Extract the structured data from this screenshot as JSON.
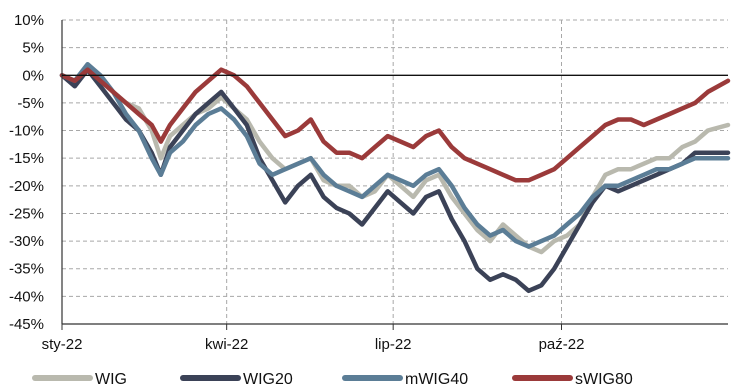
{
  "chart_data": {
    "type": "line",
    "title": "",
    "xlabel": "",
    "ylabel": "",
    "ylim": [
      -45,
      10
    ],
    "y_ticks": [
      "10%",
      "5%",
      "0%",
      "-5%",
      "-10%",
      "-15%",
      "-20%",
      "-25%",
      "-30%",
      "-35%",
      "-40%",
      "-45%"
    ],
    "y_tick_values": [
      10,
      5,
      0,
      -5,
      -10,
      -15,
      -20,
      -25,
      -30,
      -35,
      -40,
      -45
    ],
    "x_ticks": [
      "sty-22",
      "kwi-22",
      "lip-22",
      "paź-22"
    ],
    "x_tick_dates": [
      "2022-01-01",
      "2022-04-01",
      "2022-07-01",
      "2022-10-01"
    ],
    "x_range": [
      "2022-01-01",
      "2022-12-31"
    ],
    "grid": true,
    "legend_position": "bottom",
    "x": [
      "2022-01-01",
      "2022-01-08",
      "2022-01-15",
      "2022-01-22",
      "2022-01-29",
      "2022-02-05",
      "2022-02-12",
      "2022-02-19",
      "2022-02-24",
      "2022-03-01",
      "2022-03-08",
      "2022-03-15",
      "2022-03-22",
      "2022-03-29",
      "2022-04-05",
      "2022-04-12",
      "2022-04-19",
      "2022-04-26",
      "2022-05-03",
      "2022-05-10",
      "2022-05-17",
      "2022-05-24",
      "2022-05-31",
      "2022-06-07",
      "2022-06-14",
      "2022-06-21",
      "2022-06-28",
      "2022-07-05",
      "2022-07-12",
      "2022-07-19",
      "2022-07-26",
      "2022-08-02",
      "2022-08-09",
      "2022-08-16",
      "2022-08-23",
      "2022-08-30",
      "2022-09-06",
      "2022-09-13",
      "2022-09-20",
      "2022-09-27",
      "2022-10-04",
      "2022-10-11",
      "2022-10-18",
      "2022-10-25",
      "2022-11-01",
      "2022-11-08",
      "2022-11-15",
      "2022-11-22",
      "2022-11-29",
      "2022-12-06",
      "2022-12-13",
      "2022-12-20",
      "2022-12-31"
    ],
    "series": [
      {
        "name": "WIG",
        "color": "#b9b9ae",
        "values": [
          0,
          -1,
          1,
          -1,
          -3,
          -5,
          -6,
          -10,
          -15,
          -11,
          -9,
          -7,
          -6,
          -4,
          -6,
          -8,
          -12,
          -15,
          -17,
          -16,
          -15,
          -19,
          -20,
          -20,
          -22,
          -21,
          -18,
          -20,
          -22,
          -19,
          -18,
          -22,
          -25,
          -28,
          -30,
          -27,
          -29,
          -31,
          -32,
          -30,
          -29,
          -27,
          -22,
          -18,
          -17,
          -17,
          -16,
          -15,
          -15,
          -13,
          -12,
          -10,
          -9
        ]
      },
      {
        "name": "WIG20",
        "color": "#3b4257",
        "values": [
          0,
          -2,
          1,
          -2,
          -5,
          -8,
          -10,
          -14,
          -18,
          -13,
          -10,
          -7,
          -5,
          -3,
          -6,
          -9,
          -15,
          -19,
          -23,
          -20,
          -18,
          -22,
          -24,
          -25,
          -27,
          -24,
          -21,
          -23,
          -25,
          -22,
          -21,
          -26,
          -30,
          -35,
          -37,
          -36,
          -37,
          -39,
          -38,
          -35,
          -31,
          -27,
          -23,
          -20,
          -21,
          -20,
          -19,
          -18,
          -17,
          -16,
          -14,
          -14,
          -14
        ]
      },
      {
        "name": "mWIG40",
        "color": "#5b7d96",
        "values": [
          0,
          -1,
          2,
          0,
          -3,
          -7,
          -10,
          -15,
          -18,
          -14,
          -12,
          -9,
          -7,
          -6,
          -8,
          -11,
          -16,
          -18,
          -17,
          -16,
          -15,
          -18,
          -20,
          -21,
          -22,
          -20,
          -18,
          -19,
          -20,
          -18,
          -17,
          -20,
          -24,
          -27,
          -29,
          -28,
          -30,
          -31,
          -30,
          -29,
          -27,
          -25,
          -22,
          -20,
          -20,
          -19,
          -18,
          -17,
          -17,
          -16,
          -15,
          -15,
          -15
        ]
      },
      {
        "name": "sWIG80",
        "color": "#9b3a3a",
        "values": [
          0,
          -1,
          1,
          -1,
          -3,
          -5,
          -7,
          -9,
          -12,
          -9,
          -6,
          -3,
          -1,
          1,
          0,
          -2,
          -5,
          -8,
          -11,
          -10,
          -8,
          -12,
          -14,
          -14,
          -15,
          -13,
          -11,
          -12,
          -13,
          -11,
          -10,
          -13,
          -15,
          -16,
          -17,
          -18,
          -19,
          -19,
          -18,
          -17,
          -15,
          -13,
          -11,
          -9,
          -8,
          -8,
          -9,
          -8,
          -7,
          -6,
          -5,
          -3,
          -1
        ]
      }
    ]
  }
}
